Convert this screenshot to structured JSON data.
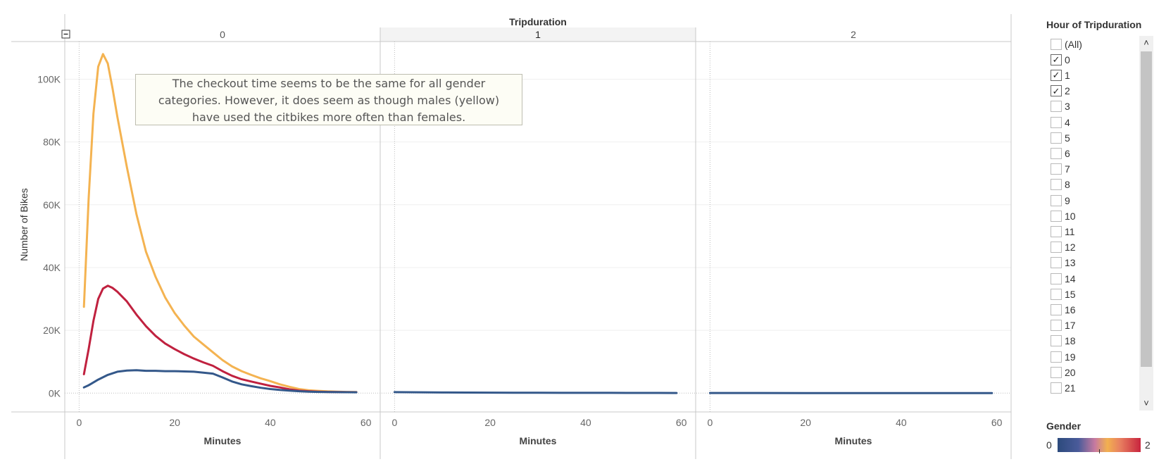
{
  "column_header": "Tripduration",
  "panels": [
    "0",
    "1",
    "2"
  ],
  "x_axis_title": "Minutes",
  "y_axis_title": "Number of Bikes",
  "y_ticks": [
    "0K",
    "20K",
    "40K",
    "60K",
    "80K",
    "100K"
  ],
  "x_ticks": [
    "0",
    "20",
    "40",
    "60"
  ],
  "collapse_icon": "minus-square-icon",
  "annotation": {
    "line1": "The checkout time seems to be the same for all gender",
    "line2": "categories. However, it does seem as though males (yellow)",
    "line3": "have used the citbikes more often than females."
  },
  "filter": {
    "title": "Hour of Tripduration",
    "items": [
      {
        "label": "(All)",
        "checked": false
      },
      {
        "label": "0",
        "checked": true
      },
      {
        "label": "1",
        "checked": true
      },
      {
        "label": "2",
        "checked": true
      },
      {
        "label": "3",
        "checked": false
      },
      {
        "label": "4",
        "checked": false
      },
      {
        "label": "5",
        "checked": false
      },
      {
        "label": "6",
        "checked": false
      },
      {
        "label": "7",
        "checked": false
      },
      {
        "label": "8",
        "checked": false
      },
      {
        "label": "9",
        "checked": false
      },
      {
        "label": "10",
        "checked": false
      },
      {
        "label": "11",
        "checked": false
      },
      {
        "label": "12",
        "checked": false
      },
      {
        "label": "13",
        "checked": false
      },
      {
        "label": "14",
        "checked": false
      },
      {
        "label": "15",
        "checked": false
      },
      {
        "label": "16",
        "checked": false
      },
      {
        "label": "17",
        "checked": false
      },
      {
        "label": "18",
        "checked": false
      },
      {
        "label": "19",
        "checked": false
      },
      {
        "label": "20",
        "checked": false
      },
      {
        "label": "21",
        "checked": false
      }
    ]
  },
  "legend": {
    "title": "Gender",
    "min": "0",
    "max": "2",
    "colors": [
      "#2c4a7c",
      "#c77aa0",
      "#f2b04f",
      "#c8243e"
    ]
  },
  "colors": {
    "gender0": "#34588a",
    "gender1": "#f4b351",
    "gender2": "#c0213f"
  },
  "chart_data": {
    "type": "line",
    "title": "",
    "xlabel": "Minutes",
    "ylabel": "Number of Bikes",
    "xlim": [
      -3,
      63
    ],
    "ylim": [
      -6000,
      112000
    ],
    "panels": [
      {
        "name": "0",
        "series": [
          {
            "gender": "1",
            "color": "#f4b351",
            "x": [
              1,
              2,
              3,
              4,
              5,
              6,
              7,
              8,
              10,
              12,
              14,
              16,
              18,
              20,
              22,
              24,
              26,
              28,
              30,
              32,
              34,
              36,
              38,
              40,
              42,
              44,
              46,
              48,
              50,
              52,
              54,
              56,
              58
            ],
            "y": [
              27500,
              62000,
              89000,
              104000,
              108000,
              105000,
              97000,
              88000,
              72000,
              57000,
              45000,
              37000,
              30500,
              25500,
              21500,
              18000,
              15500,
              13000,
              10500,
              8500,
              7000,
              5800,
              4700,
              3800,
              2800,
              2000,
              1300,
              900,
              700,
              550,
              450,
              380,
              330
            ]
          },
          {
            "gender": "2",
            "color": "#c0213f",
            "x": [
              1,
              2,
              3,
              4,
              5,
              6,
              7,
              8,
              10,
              12,
              14,
              16,
              18,
              20,
              22,
              24,
              26,
              28,
              30,
              32,
              34,
              36,
              38,
              40,
              42,
              44,
              46,
              48,
              50,
              52,
              54,
              56,
              58
            ],
            "y": [
              6000,
              14000,
              23000,
              30000,
              33300,
              34200,
              33500,
              32300,
              29200,
              25000,
              21300,
              18200,
              15800,
              14000,
              12400,
              11000,
              9800,
              8700,
              7000,
              5500,
              4400,
              3700,
              3000,
              2300,
              1800,
              1200,
              800,
              600,
              450,
              380,
              330,
              300,
              280
            ]
          },
          {
            "gender": "0",
            "color": "#34588a",
            "x": [
              1,
              2,
              4,
              6,
              8,
              10,
              12,
              14,
              16,
              18,
              20,
              22,
              24,
              26,
              28,
              30,
              32,
              34,
              36,
              38,
              40,
              42,
              44,
              46,
              48,
              50,
              52,
              54,
              56,
              58
            ],
            "y": [
              1800,
              2500,
              4300,
              5800,
              6800,
              7200,
              7300,
              7100,
              7100,
              7000,
              7000,
              6900,
              6800,
              6500,
              6200,
              5000,
              3700,
              2800,
              2200,
              1700,
              1300,
              1000,
              800,
              600,
              450,
              380,
              330,
              300,
              280,
              260
            ]
          }
        ]
      },
      {
        "name": "1",
        "series": [
          {
            "gender": "0",
            "color": "#34588a",
            "x": [
              0,
              5,
              10,
              15,
              20,
              25,
              30,
              35,
              40,
              45,
              50,
              55,
              59
            ],
            "y": [
              300,
              250,
              200,
              180,
              150,
              120,
              100,
              90,
              80,
              70,
              60,
              50,
              40
            ]
          }
        ]
      },
      {
        "name": "2",
        "series": [
          {
            "gender": "0",
            "color": "#34588a",
            "x": [
              0,
              10,
              20,
              30,
              40,
              50,
              59
            ],
            "y": [
              30,
              25,
              20,
              18,
              15,
              12,
              10
            ]
          }
        ]
      }
    ]
  }
}
